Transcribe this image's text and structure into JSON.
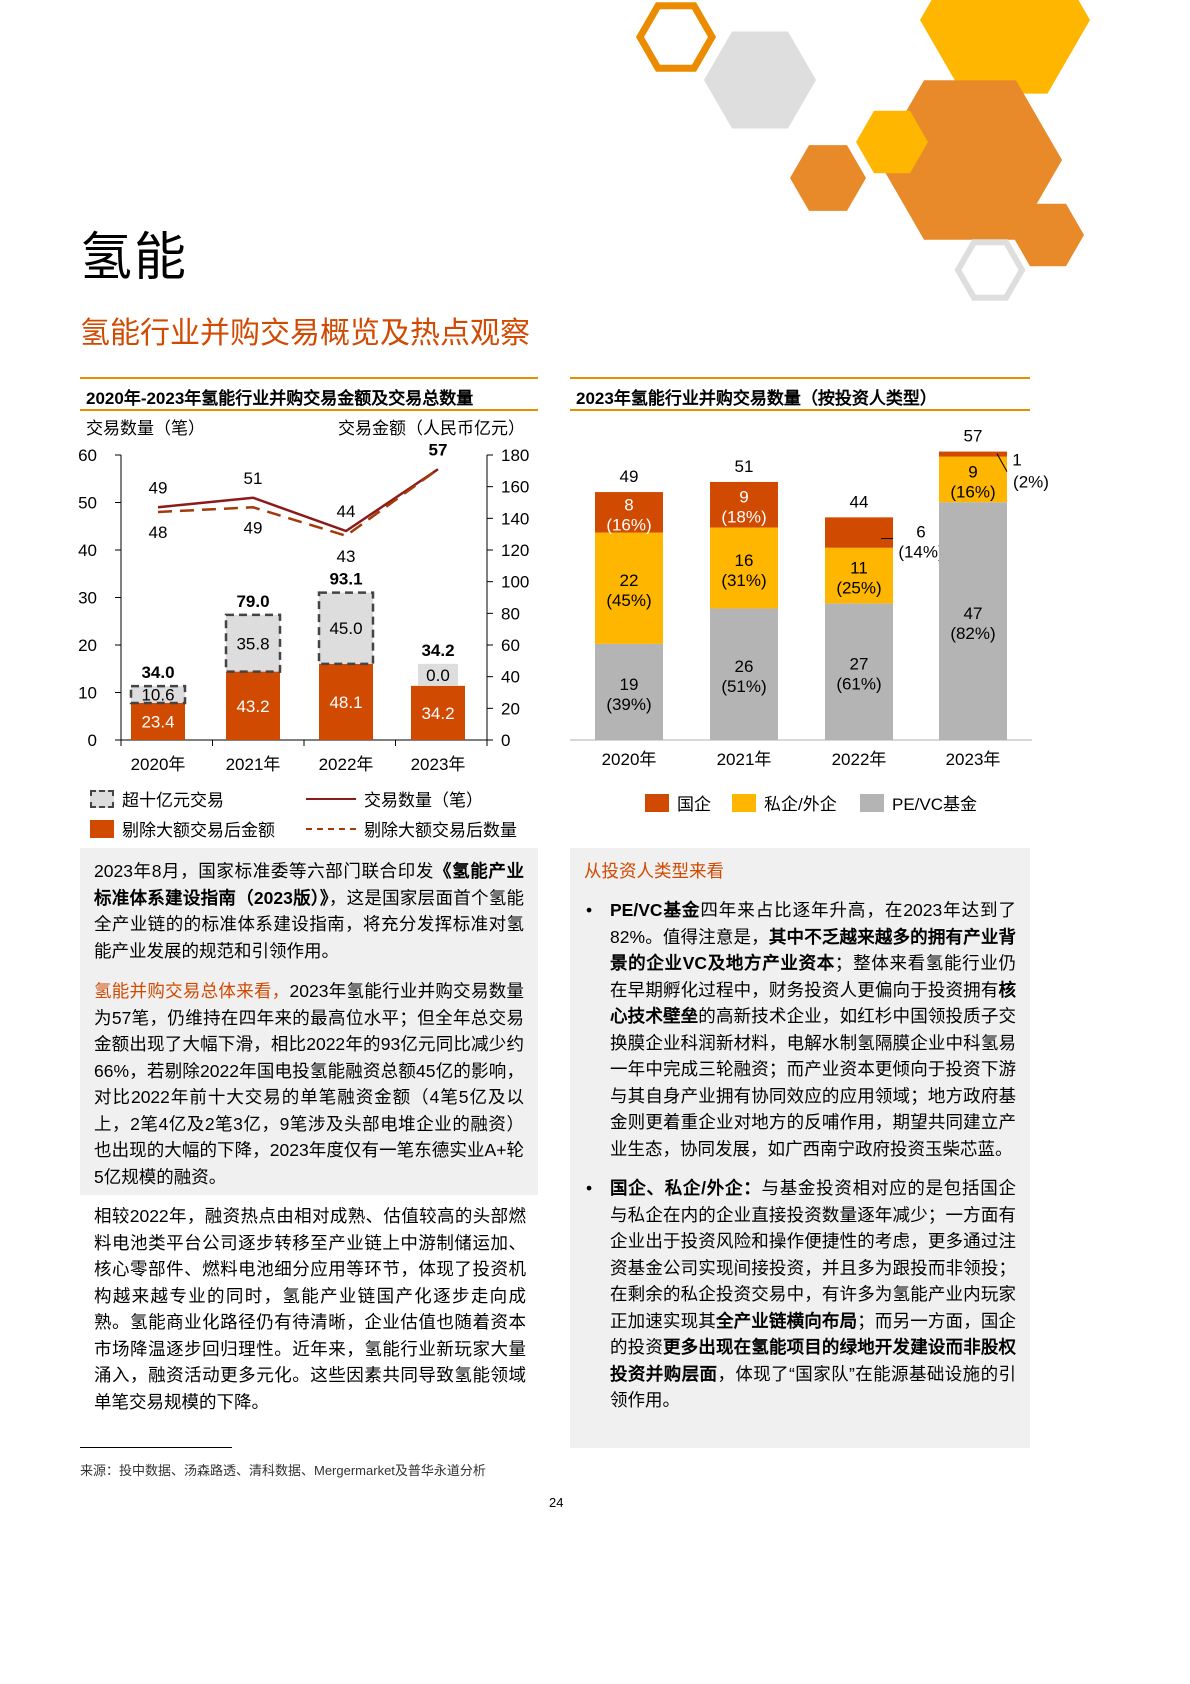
{
  "page_title": "氢能",
  "section_title": "氢能行业并购交易概览及热点观察",
  "colors": {
    "accent": "#d04a02",
    "orange_rule": "#eb8c00",
    "yellow": "#ffb600",
    "grey": "#b4b4b4",
    "line": "#8b1a1a",
    "dashed_line": "#a33a0a",
    "panel_bg": "#f0f0f0"
  },
  "chart_data": [
    {
      "type": "bar+line",
      "title": "2020年-2023年氢能行业并购交易金额及交易总数量",
      "ylabel_left": "交易数量（笔）",
      "ylabel_right": "交易金额（人民币亿元）",
      "categories": [
        "2020年",
        "2021年",
        "2022年",
        "2023年"
      ],
      "ylim_left": [
        0,
        60
      ],
      "yticks_left": [
        0,
        10,
        20,
        30,
        40,
        50,
        60
      ],
      "ylim_right": [
        0,
        180
      ],
      "yticks_right": [
        0,
        20,
        40,
        60,
        80,
        100,
        120,
        140,
        160,
        180
      ],
      "stacked_bars": [
        {
          "name": "剔除大额交易后金额",
          "values": [
            23.4,
            43.2,
            48.1,
            34.2
          ]
        },
        {
          "name": "超十亿元交易",
          "values": [
            10.6,
            35.8,
            45.0,
            0.0
          ]
        }
      ],
      "bar_totals": [
        "34.0",
        "79.0",
        "93.1",
        "34.2"
      ],
      "lines": [
        {
          "name": "交易数量（笔）",
          "values": [
            49,
            51,
            44,
            57
          ],
          "style": "solid"
        },
        {
          "name": "剔除大额交易后数量",
          "values": [
            48,
            49,
            43,
            57
          ],
          "style": "dashed"
        }
      ],
      "legend": [
        "超十亿元交易",
        "交易数量（笔）",
        "剔除大额交易后金额",
        "剔除大额交易后数量"
      ]
    },
    {
      "type": "bar",
      "stacked": true,
      "title": "2023年氢能行业并购交易数量（按投资人类型）",
      "categories": [
        "2020年",
        "2021年",
        "2022年",
        "2023年"
      ],
      "series": [
        {
          "name": "PE/VC基金",
          "values": [
            19,
            26,
            27,
            47
          ],
          "labels": [
            "(39%)",
            "(51%)",
            "(61%)",
            "(82%)"
          ]
        },
        {
          "name": "私企/外企",
          "values": [
            22,
            16,
            11,
            9
          ],
          "labels": [
            "(45%)",
            "(31%)",
            "(25%)",
            "(16%)"
          ]
        },
        {
          "name": "国企",
          "values": [
            8,
            9,
            6,
            1
          ],
          "labels": [
            "(16%)",
            "(18%)",
            "(14%)",
            "(2%)"
          ]
        }
      ],
      "totals": [
        49,
        51,
        44,
        57
      ],
      "legend": [
        "国企",
        "私企/外企",
        "PE/VC基金"
      ]
    }
  ],
  "left_panel": {
    "p1": [
      {
        "t": "2023年8月，国家标准委等六部门联合印发"
      },
      {
        "t": "《氢能产业标准体系建设指南（2023版）》",
        "b": true
      },
      {
        "t": "，这是国家层面首个氢能全产业链的的标准体系建设指南，将充分发挥标准对氢能产业发展的规范和引领作用。"
      }
    ],
    "p2": [
      {
        "t": "氢能并购交易总体来看，",
        "h": true
      },
      {
        "t": "2023年氢能行业并购交易数量为57笔，仍维持在四年来的最高位水平；但全年总交易金额出现了大幅下滑，相比2022年的93亿元同比减少约66%，若剔除2022年国电投氢能融资总额45亿的影响，对比2022年前十大交易的单笔融资金额（4笔5亿及以上，2笔4亿及2笔3亿，9笔涉及头部电堆企业的融资）也出现的大幅的下降，2023年度仅有一笔东德实业A+轮5亿规模的融资。"
      }
    ],
    "p3": [
      {
        "t": "相较2022年，融资热点由相对成熟、估值较高的头部燃料电池类平台公司逐步转移至产业链上中游制储运加、核心零部件、燃料电池细分应用等环节，体现了投资机构越来越专业的同时，氢能产业链国产化逐步走向成熟。氢能商业化路径仍有待清晰，企业估值也随着资本市场降温逐步回归理性。近年来，氢能行业新玩家大量涌入，融资活动更多元化。这些因素共同导致氢能领域单笔交易规模的下降。"
      }
    ]
  },
  "right_panel": {
    "heading": "从投资人类型来看",
    "bullets": [
      [
        {
          "t": "PE/VC基金",
          "b": true
        },
        {
          "t": "四年来占比逐年升高，在2023年达到了82%。值得注意是，"
        },
        {
          "t": "其中不乏越来越多的拥有产业背景的企业VC及地方产业资本",
          "b": true
        },
        {
          "t": "；整体来看氢能行业仍在早期孵化过程中，财务投资人更偏向于投资拥有"
        },
        {
          "t": "核心技术壁垒",
          "b": true
        },
        {
          "t": "的高新技术企业，如红杉中国领投质子交换膜企业科润新材料，电解水制氢隔膜企业中科氢易一年中完成三轮融资；而产业资本更倾向于投资下游与其自身产业拥有协同效应的应用领域；地方政府基金则更着重企业对地方的反哺作用，期望共同建立产业生态，协同发展，如广西南宁政府投资玉柴芯蓝。"
        }
      ],
      [
        {
          "t": "国企、私企/外企：",
          "b": true
        },
        {
          "t": "与基金投资相对应的是包括国企与私企在内的企业直接投资数量逐年减少；一方面有企业出于投资风险和操作便捷性的考虑，更多通过注资基金公司实现间接投资，并且多为跟投而非领投；在剩余的私企投资交易中，有许多为氢能产业内玩家正加速实现其"
        },
        {
          "t": "全产业链横向布局",
          "b": true
        },
        {
          "t": "；而另一方面，国企的投资"
        },
        {
          "t": "更多出现在氢能项目的绿地开发建设而非股权投资并购层面",
          "b": true
        },
        {
          "t": "，体现了“国家队”在能源基础设施的引领作用。"
        }
      ]
    ]
  },
  "footer": {
    "source": "来源：投中数据、汤森路透、清科数据、Mergermarket及普华永道分析",
    "page_number": "24"
  }
}
